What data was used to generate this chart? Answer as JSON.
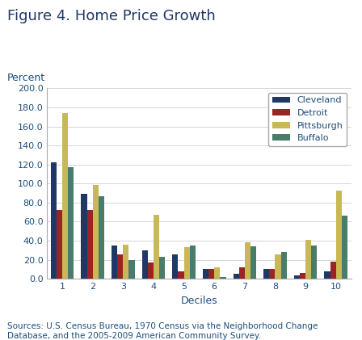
{
  "title": "Figure 4. Home Price Growth",
  "ylabel": "Percent",
  "xlabel": "Deciles",
  "source_text": "Sources: U.S. Census Bureau, 1970 Census via the Neighborhood Change\nDatabase, and the 2005-2009 American Community Survey.",
  "deciles": [
    1,
    2,
    3,
    4,
    5,
    6,
    7,
    8,
    9,
    10
  ],
  "series": {
    "Cleveland": [
      122.0,
      89.0,
      35.0,
      30.0,
      26.0,
      10.0,
      5.0,
      10.0,
      4.0,
      8.0
    ],
    "Detroit": [
      72.0,
      72.0,
      26.0,
      17.0,
      8.0,
      10.0,
      12.0,
      10.0,
      6.0,
      18.0
    ],
    "Pittsburgh": [
      174.0,
      99.0,
      36.0,
      67.0,
      33.0,
      12.0,
      38.0,
      26.0,
      41.0,
      93.0
    ],
    "Buffalo": [
      117.0,
      87.0,
      20.0,
      23.0,
      35.0,
      2.0,
      34.0,
      28.0,
      35.0,
      66.0
    ]
  },
  "colors": {
    "Cleveland": "#1f3864",
    "Detroit": "#9b2323",
    "Pittsburgh": "#c8b858",
    "Buffalo": "#4a7c6a"
  },
  "title_color": "#1f3864",
  "text_color": "#1f4e79",
  "ylim": [
    0,
    200.0
  ],
  "yticks": [
    0,
    20.0,
    40.0,
    60.0,
    80.0,
    100.0,
    120.0,
    140.0,
    160.0,
    180.0,
    200.0
  ],
  "legend_loc": "upper right",
  "bar_width": 0.19,
  "figsize": [
    4.48,
    4.21
  ],
  "dpi": 100,
  "title_fontsize": 13,
  "axis_label_fontsize": 9,
  "tick_fontsize": 8,
  "legend_fontsize": 8,
  "source_fontsize": 7.5,
  "grid_color": "#d0d0d0",
  "background_color": "#ffffff"
}
